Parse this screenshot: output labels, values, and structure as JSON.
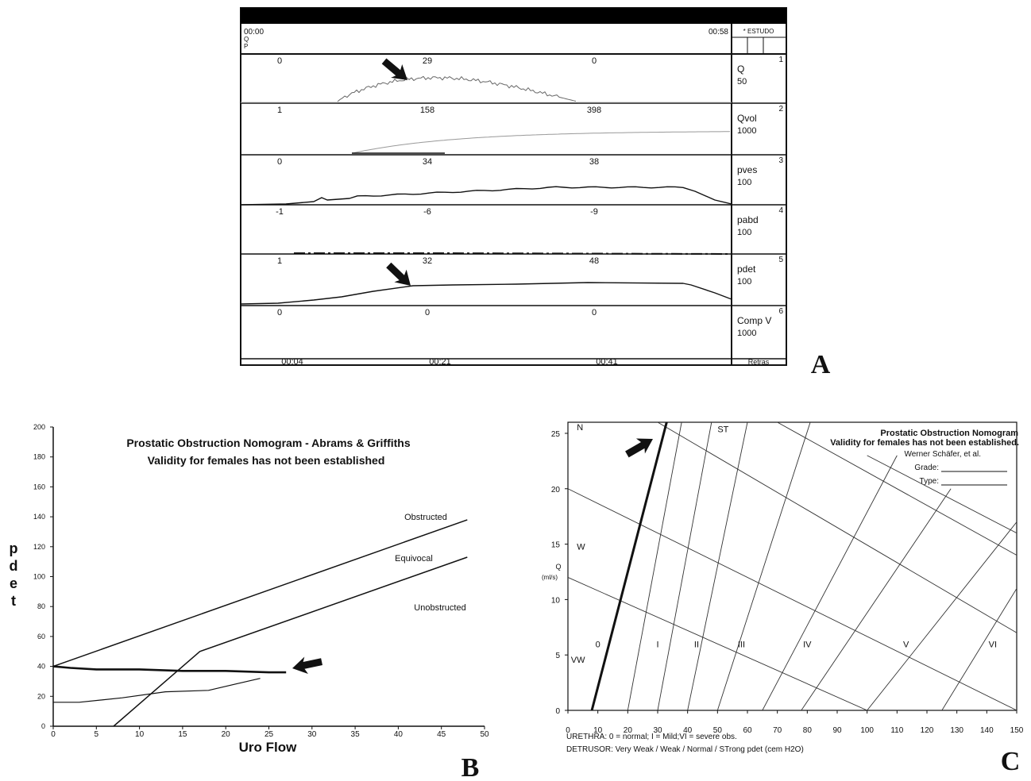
{
  "panel_letters": [
    "A",
    "B",
    "C"
  ],
  "chart_data": [
    {
      "type": "line",
      "panel": "A",
      "header": {
        "start_time": "00:00",
        "end_time": "00:58",
        "side_label": "* ESTUDO",
        "left_tags": [
          "Q",
          "P"
        ]
      },
      "time_axis": [
        "00:04",
        "00:21",
        "00:41"
      ],
      "footer_side_label": "Retras",
      "channels": [
        {
          "name": "Q",
          "scale": "50",
          "index": "1",
          "readings": [
            "0",
            "29",
            "0"
          ]
        },
        {
          "name": "Qvol",
          "scale": "1000",
          "index": "2",
          "readings": [
            "1",
            "158",
            "398"
          ]
        },
        {
          "name": "pves",
          "scale": "100",
          "index": "3",
          "readings": [
            "0",
            "34",
            "38"
          ]
        },
        {
          "name": "pabd",
          "scale": "100",
          "index": "4",
          "readings": [
            "-1",
            "-6",
            "-9"
          ]
        },
        {
          "name": "pdet",
          "scale": "100",
          "index": "5",
          "readings": [
            "1",
            "32",
            "48"
          ]
        },
        {
          "name": "Comp V",
          "scale": "1000",
          "index": "6",
          "readings": [
            "0",
            "0",
            "0"
          ]
        }
      ]
    },
    {
      "type": "line",
      "panel": "B",
      "title": "Prostatic Obstruction Nomogram - Abrams & Griffiths",
      "subtitle": "Validity for females has not been established",
      "xlabel": "Uro Flow",
      "ylabel": "p d e t",
      "xlim": [
        0,
        50
      ],
      "ylim": [
        0,
        200
      ],
      "x_ticks": [
        0,
        5,
        10,
        15,
        20,
        25,
        30,
        35,
        40,
        45,
        50
      ],
      "y_ticks": [
        0,
        20,
        40,
        60,
        80,
        100,
        120,
        140,
        160,
        180,
        200
      ],
      "y_tick_labels": [
        "0",
        "20",
        "40",
        "60",
        "80",
        "100",
        "120",
        "140",
        "160",
        "180",
        "200"
      ],
      "grid": false,
      "region_labels": [
        "Obstructed",
        "Equivocal",
        "Unobstructed"
      ],
      "boundaries": [
        {
          "x": [
            0,
            48
          ],
          "y": [
            40,
            138
          ]
        },
        {
          "x": [
            7,
            17,
            48
          ],
          "y": [
            0,
            50,
            113
          ]
        }
      ],
      "series": [
        {
          "values_x": [
            0,
            2,
            5,
            10,
            15,
            20,
            25,
            27
          ],
          "values_y": [
            40,
            39,
            38,
            38,
            37,
            37,
            36,
            36
          ]
        },
        {
          "values_x": [
            0,
            3,
            8,
            13,
            18,
            21,
            24
          ],
          "values_y": [
            16,
            16,
            19,
            23,
            24,
            28,
            32
          ]
        }
      ]
    },
    {
      "type": "line",
      "panel": "C",
      "title": "Prostatic Obstruction Nomogram",
      "subtitle": "Validity for females has not been established.",
      "author": "Werner Schäfer, et al.",
      "fields": [
        "Grade:",
        "Type:"
      ],
      "xlim": [
        0,
        150
      ],
      "ylim": [
        0,
        26
      ],
      "x_ticks": [
        0,
        10,
        20,
        30,
        40,
        50,
        60,
        70,
        80,
        90,
        100,
        110,
        120,
        130,
        140,
        150
      ],
      "y_ticks": [
        0,
        5,
        10,
        15,
        20,
        25
      ],
      "ylabel": "Q (ml/s)",
      "grade_labels": [
        "0",
        "I",
        "II",
        "III",
        "IV",
        "V",
        "VI"
      ],
      "contractility_labels": [
        "VW",
        "W",
        "N",
        "ST"
      ],
      "footer_lines": [
        "URETHRA: 0 = normal; I = Mild;VI = severe obs.",
        "DETRUSOR: Very Weak /  Weak / Normal / STrong  pdet (cem H2O)"
      ],
      "series": [
        {
          "values_x": [
            8,
            33
          ],
          "values_y": [
            0,
            26
          ]
        }
      ]
    }
  ]
}
